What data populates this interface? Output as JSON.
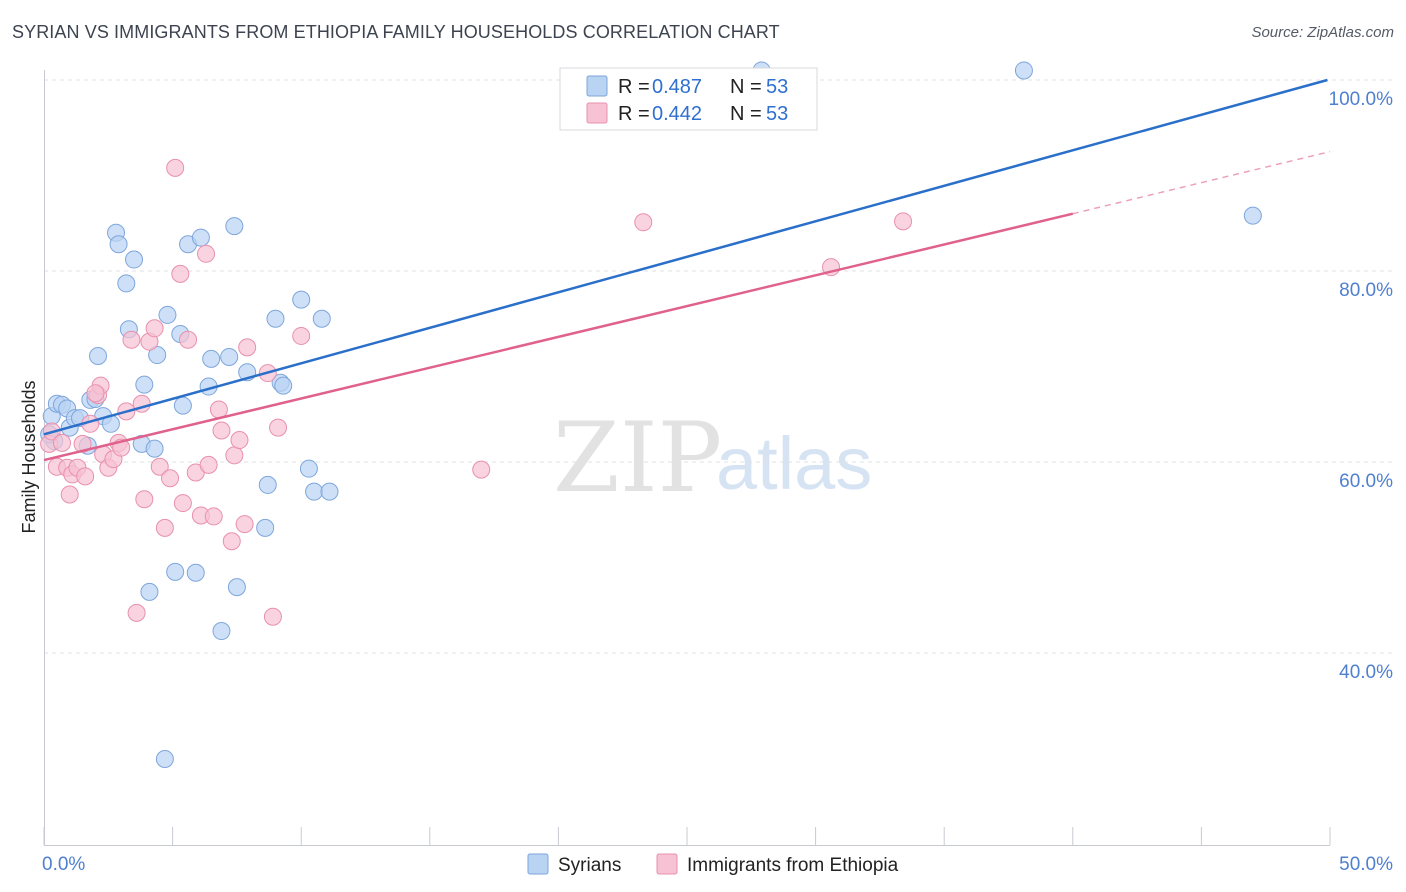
{
  "title": "SYRIAN VS IMMIGRANTS FROM ETHIOPIA FAMILY HOUSEHOLDS CORRELATION CHART",
  "source": "Source: ZipAtlas.com",
  "watermark": {
    "zip": "ZIP",
    "atlas": "atlas"
  },
  "colors": {
    "syrians_fill": "#b9d3f3",
    "syrians_stroke": "#7ea6db",
    "syrians_line": "#2a6fc9",
    "ethiopia_fill": "#f7c2d3",
    "ethiopia_stroke": "#e890ad",
    "ethiopia_line": "#e0628c",
    "grid": "#dde1e6",
    "axis_text": "#4f7fcf"
  },
  "legend": {
    "rows": [
      {
        "r_label": "R = ",
        "r_value": "0.487",
        "n_label": "N = ",
        "n_value": "53"
      },
      {
        "r_label": "R = ",
        "r_value": "0.442",
        "n_label": "N = ",
        "n_value": "53"
      }
    ]
  },
  "chart_data": {
    "type": "scatter",
    "xlabel": "",
    "ylabel": "Family Households",
    "xlim": [
      0,
      50
    ],
    "ylim": [
      20,
      102
    ],
    "x_tick_labels": [
      {
        "value": 0,
        "label": "0.0%"
      },
      {
        "value": 50,
        "label": "50.0%"
      }
    ],
    "y_tick_labels": [
      {
        "value": 40,
        "label": "40.0%"
      },
      {
        "value": 60,
        "label": "60.0%"
      },
      {
        "value": 80,
        "label": "80.0%"
      },
      {
        "value": 100,
        "label": "100.0%"
      }
    ],
    "x_minor_ticks": [
      0,
      5,
      10,
      15,
      20,
      25,
      30,
      35,
      40,
      45,
      50
    ],
    "series": [
      {
        "name": "Syrians",
        "r": 0.487,
        "n": 53,
        "trend": {
          "x": [
            0,
            49.9
          ],
          "y": [
            62.9,
            100.0
          ],
          "dashed_to": null
        },
        "points": [
          [
            0.3,
            64.8
          ],
          [
            0.4,
            62.2
          ],
          [
            0.5,
            66.1
          ],
          [
            0.7,
            66.0
          ],
          [
            0.9,
            65.6
          ],
          [
            1.0,
            63.6
          ],
          [
            1.2,
            64.6
          ],
          [
            1.4,
            64.6
          ],
          [
            1.7,
            61.7
          ],
          [
            1.8,
            66.5
          ],
          [
            2.0,
            66.6
          ],
          [
            2.1,
            71.1
          ],
          [
            2.3,
            64.8
          ],
          [
            2.6,
            64.0
          ],
          [
            2.8,
            84.0
          ],
          [
            2.9,
            82.8
          ],
          [
            3.2,
            78.7
          ],
          [
            3.3,
            73.9
          ],
          [
            3.5,
            81.2
          ],
          [
            3.8,
            61.9
          ],
          [
            3.9,
            68.1
          ],
          [
            4.1,
            46.4
          ],
          [
            4.3,
            61.4
          ],
          [
            4.4,
            71.2
          ],
          [
            4.7,
            28.9
          ],
          [
            4.8,
            75.4
          ],
          [
            5.1,
            48.5
          ],
          [
            5.3,
            73.4
          ],
          [
            5.4,
            65.9
          ],
          [
            5.6,
            82.8
          ],
          [
            5.9,
            48.4
          ],
          [
            6.1,
            83.5
          ],
          [
            6.4,
            67.9
          ],
          [
            6.5,
            70.8
          ],
          [
            6.9,
            42.3
          ],
          [
            7.2,
            71.0
          ],
          [
            7.4,
            84.7
          ],
          [
            7.5,
            46.9
          ],
          [
            7.9,
            69.4
          ],
          [
            8.6,
            53.1
          ],
          [
            8.7,
            57.6
          ],
          [
            9.0,
            75.0
          ],
          [
            9.2,
            68.3
          ],
          [
            9.3,
            68.0
          ],
          [
            10.0,
            77.0
          ],
          [
            10.3,
            59.3
          ],
          [
            10.5,
            56.9
          ],
          [
            10.8,
            75.0
          ],
          [
            11.1,
            56.9
          ],
          [
            27.9,
            101.0
          ],
          [
            38.1,
            101.0
          ],
          [
            47.0,
            85.8
          ],
          [
            0.2,
            62.9
          ]
        ]
      },
      {
        "name": "Immigrants from Ethiopia",
        "r": 0.442,
        "n": 53,
        "trend": {
          "x": [
            0,
            40.0
          ],
          "y": [
            60.2,
            86.0
          ],
          "dashed_to": [
            50,
            92.5
          ]
        },
        "points": [
          [
            0.2,
            61.9
          ],
          [
            0.3,
            63.2
          ],
          [
            0.5,
            59.5
          ],
          [
            0.7,
            62.0
          ],
          [
            0.9,
            59.4
          ],
          [
            1.0,
            56.6
          ],
          [
            1.1,
            58.7
          ],
          [
            1.3,
            59.4
          ],
          [
            1.5,
            61.9
          ],
          [
            1.6,
            58.5
          ],
          [
            1.8,
            64.0
          ],
          [
            2.1,
            67.0
          ],
          [
            2.2,
            68.0
          ],
          [
            2.3,
            60.8
          ],
          [
            2.5,
            59.4
          ],
          [
            2.7,
            60.3
          ],
          [
            2.9,
            62.0
          ],
          [
            3.0,
            61.5
          ],
          [
            3.2,
            65.3
          ],
          [
            3.4,
            72.8
          ],
          [
            3.6,
            44.2
          ],
          [
            3.8,
            66.1
          ],
          [
            3.9,
            56.1
          ],
          [
            4.1,
            72.6
          ],
          [
            4.3,
            74.0
          ],
          [
            4.5,
            59.5
          ],
          [
            4.7,
            53.1
          ],
          [
            4.9,
            58.3
          ],
          [
            5.1,
            90.8
          ],
          [
            5.3,
            79.7
          ],
          [
            5.4,
            55.7
          ],
          [
            5.6,
            72.8
          ],
          [
            5.9,
            58.9
          ],
          [
            6.1,
            54.4
          ],
          [
            6.3,
            81.8
          ],
          [
            6.4,
            59.7
          ],
          [
            6.6,
            54.3
          ],
          [
            6.8,
            65.5
          ],
          [
            6.9,
            63.3
          ],
          [
            7.3,
            51.7
          ],
          [
            7.4,
            60.7
          ],
          [
            7.6,
            62.3
          ],
          [
            7.8,
            53.5
          ],
          [
            7.9,
            72.0
          ],
          [
            8.7,
            69.3
          ],
          [
            8.9,
            43.8
          ],
          [
            9.1,
            63.6
          ],
          [
            10.0,
            73.2
          ],
          [
            17.0,
            59.2
          ],
          [
            23.3,
            85.1
          ],
          [
            30.6,
            80.4
          ],
          [
            33.4,
            85.2
          ],
          [
            2.0,
            67.2
          ]
        ]
      }
    ]
  }
}
